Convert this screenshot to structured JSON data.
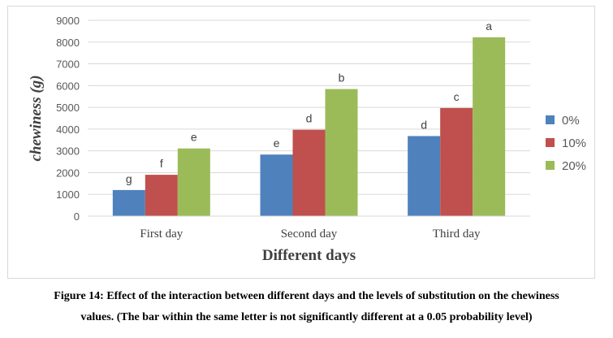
{
  "chart_data": {
    "type": "bar",
    "title": "",
    "xlabel": "Different days",
    "ylabel": "chewiness (g)",
    "ylim": [
      0,
      9000
    ],
    "yticks": [
      0,
      1000,
      2000,
      3000,
      4000,
      5000,
      6000,
      7000,
      8000,
      9000
    ],
    "grid": true,
    "legend_position": "right",
    "categories": [
      "First day",
      "Second day",
      "Third day"
    ],
    "series": [
      {
        "name": "0%",
        "color": "#4f81bd",
        "values": [
          1200,
          2830,
          3680
        ],
        "labels": [
          "g",
          "e",
          "d"
        ]
      },
      {
        "name": "10%",
        "color": "#c0504d",
        "values": [
          1900,
          3970,
          4970
        ],
        "labels": [
          "f",
          "d",
          "c"
        ]
      },
      {
        "name": "20%",
        "color": "#9bbb59",
        "values": [
          3110,
          5840,
          8220
        ],
        "labels": [
          "e",
          "b",
          "a"
        ]
      }
    ]
  },
  "caption": {
    "line1": "Figure 14: Effect of the interaction between different days and the levels of substitution on the chewiness",
    "line2": "values. (The bar within the same letter is not significantly different at a 0.05 probability level)"
  }
}
